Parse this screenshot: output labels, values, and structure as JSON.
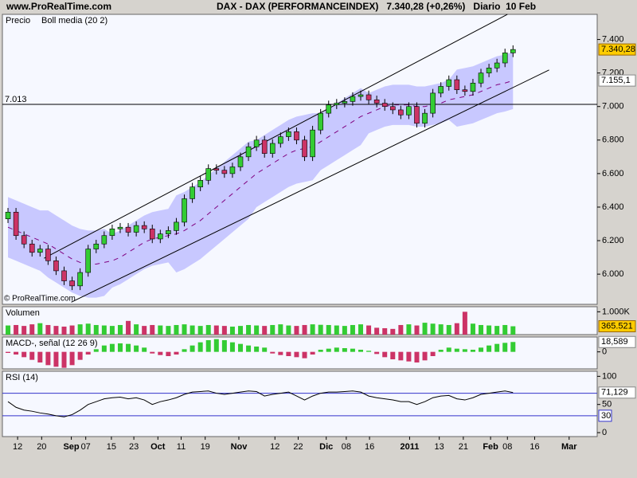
{
  "header": {
    "site": "www.ProRealTime.com",
    "title": "DAX - DAX (PERFORMANCEINDEX)   7.340,28 (+0,26%)   Diario  10 Feb",
    "watermark": "© ProRealTime.com"
  },
  "chart_data": [
    {
      "type": "candlestick",
      "title": "Precio",
      "up_color": "#33cc33",
      "down_color": "#cc3366",
      "ylim": [
        5820,
        7550
      ],
      "yticks": [
        {
          "value": 6000,
          "label": "6.000"
        },
        {
          "value": 6200,
          "label": "6.200"
        },
        {
          "value": 6400,
          "label": "6.400"
        },
        {
          "value": 6600,
          "label": "6.600"
        },
        {
          "value": 6800,
          "label": "6.800"
        },
        {
          "value": 7000,
          "label": "7.000"
        },
        {
          "value": 7200,
          "label": "7.200"
        },
        {
          "value": 7400,
          "label": "7.400"
        }
      ],
      "open": [
        6330,
        6370,
        6230,
        6180,
        6130,
        6150,
        6080,
        6020,
        5960,
        5930,
        6010,
        6150,
        6180,
        6230,
        6270,
        6280,
        6250,
        6290,
        6270,
        6210,
        6240,
        6260,
        6310,
        6450,
        6520,
        6560,
        6630,
        6620,
        6600,
        6640,
        6700,
        6760,
        6800,
        6720,
        6780,
        6820,
        6850,
        6800,
        6700,
        6860,
        6960,
        7010,
        7020,
        7030,
        7060,
        7070,
        7040,
        7020,
        7000,
        6980,
        6950,
        7000,
        6900,
        6960,
        7080,
        7120,
        7160,
        7100,
        7090,
        7140,
        7200,
        7230,
        7260,
        7320
      ],
      "high": [
        6395,
        6395,
        6255,
        6205,
        6175,
        6175,
        6105,
        6045,
        5985,
        6035,
        6175,
        6205,
        6255,
        6295,
        6305,
        6305,
        6315,
        6315,
        6295,
        6265,
        6285,
        6335,
        6475,
        6545,
        6585,
        6655,
        6655,
        6645,
        6665,
        6725,
        6785,
        6825,
        6825,
        6805,
        6845,
        6875,
        6875,
        6825,
        6885,
        6985,
        7035,
        7045,
        7055,
        7085,
        7095,
        7095,
        7065,
        7045,
        7025,
        7005,
        7025,
        7025,
        6985,
        7105,
        7145,
        7185,
        7185,
        7125,
        7165,
        7225,
        7255,
        7285,
        7345,
        7365
      ],
      "low": [
        6305,
        6205,
        6155,
        6105,
        6105,
        6055,
        5995,
        5935,
        5905,
        5905,
        5985,
        6125,
        6155,
        6205,
        6245,
        6225,
        6225,
        6245,
        6185,
        6185,
        6215,
        6235,
        6285,
        6425,
        6495,
        6535,
        6595,
        6575,
        6575,
        6615,
        6675,
        6735,
        6695,
        6695,
        6755,
        6795,
        6775,
        6675,
        6675,
        6835,
        6935,
        6985,
        6995,
        7005,
        7035,
        7015,
        6995,
        6975,
        6955,
        6925,
        6925,
        6875,
        6875,
        6935,
        7055,
        7095,
        7075,
        7065,
        7065,
        7115,
        7175,
        7205,
        7235,
        7295
      ],
      "close": [
        6370,
        6230,
        6180,
        6130,
        6150,
        6080,
        6020,
        5960,
        5930,
        6010,
        6150,
        6180,
        6230,
        6270,
        6280,
        6250,
        6290,
        6270,
        6210,
        6240,
        6260,
        6310,
        6450,
        6520,
        6560,
        6630,
        6620,
        6600,
        6640,
        6700,
        6760,
        6800,
        6720,
        6780,
        6820,
        6850,
        6800,
        6700,
        6860,
        6960,
        7010,
        7020,
        7030,
        7060,
        7070,
        7040,
        7020,
        7000,
        6980,
        6950,
        7000,
        6900,
        6960,
        7080,
        7120,
        7160,
        7100,
        7090,
        7140,
        7200,
        7230,
        7260,
        7320,
        7340.28
      ],
      "value_labels": [
        null,
        null,
        null,
        null,
        null,
        null,
        null,
        null,
        null,
        null,
        null,
        null,
        null,
        null,
        null,
        null,
        null,
        null,
        null,
        null,
        null,
        null,
        null,
        null,
        null,
        null,
        null,
        null,
        null,
        null,
        null,
        null,
        null,
        null,
        null,
        null,
        null,
        null,
        null,
        null,
        null,
        null,
        null,
        null,
        null,
        null,
        null,
        null,
        null,
        null,
        null,
        null,
        null,
        null,
        null,
        null,
        null,
        null,
        null,
        null,
        null,
        null,
        null,
        "7.340,28"
      ],
      "band": {
        "color": "#c8c8ff",
        "upper": [
          6460,
          6440,
          6420,
          6400,
          6380,
          6380,
          6350,
          6320,
          6290,
          6270,
          6260,
          6260,
          6270,
          6240,
          6260,
          6290,
          6320,
          6350,
          6370,
          6380,
          6390,
          6470,
          6490,
          6520,
          6550,
          6590,
          6630,
          6670,
          6710,
          6750,
          6790,
          6800,
          6830,
          6860,
          6890,
          6920,
          6940,
          6950,
          6960,
          6960,
          6990,
          7020,
          7050,
          7080,
          7110,
          7080,
          7100,
          7120,
          7130,
          7130,
          7130,
          7120,
          7120,
          7130,
          7140,
          7160,
          7220,
          7230,
          7240,
          7260,
          7280,
          7300,
          7310,
          7325.1
        ],
        "lower": [
          6100,
          6080,
          6060,
          6040,
          6020,
          5980,
          5950,
          5920,
          5890,
          5870,
          5860,
          5860,
          5870,
          5920,
          5940,
          5970,
          6000,
          6030,
          6050,
          6060,
          6070,
          6010,
          6030,
          6060,
          6090,
          6130,
          6170,
          6210,
          6250,
          6290,
          6330,
          6400,
          6430,
          6460,
          6490,
          6520,
          6540,
          6550,
          6560,
          6620,
          6650,
          6680,
          6710,
          6740,
          6770,
          6840,
          6860,
          6880,
          6890,
          6890,
          6890,
          6880,
          6880,
          6890,
          6900,
          6920,
          6880,
          6890,
          6900,
          6920,
          6940,
          6960,
          6970,
          6985.1
        ]
      },
      "overlays": [
        {
          "name": "Boll media (20 2)",
          "color": "#800080",
          "values": [
            6280,
            6260,
            6240,
            6220,
            6200,
            6180,
            6150,
            6120,
            6090,
            6070,
            6060,
            6060,
            6070,
            6080,
            6100,
            6130,
            6160,
            6190,
            6210,
            6220,
            6230,
            6240,
            6260,
            6290,
            6320,
            6360,
            6400,
            6440,
            6480,
            6520,
            6560,
            6600,
            6630,
            6660,
            6690,
            6720,
            6740,
            6750,
            6760,
            6790,
            6820,
            6850,
            6880,
            6910,
            6940,
            6960,
            6980,
            7000,
            7010,
            7010,
            7010,
            7000,
            7000,
            7010,
            7020,
            7040,
            7050,
            7060,
            7070,
            7090,
            7110,
            7130,
            7140,
            7155.1
          ],
          "value_labels": [
            null,
            null,
            null,
            null,
            null,
            null,
            null,
            null,
            null,
            null,
            null,
            null,
            null,
            null,
            null,
            null,
            null,
            null,
            null,
            null,
            null,
            null,
            null,
            null,
            null,
            null,
            null,
            null,
            null,
            null,
            null,
            null,
            null,
            null,
            null,
            null,
            null,
            null,
            null,
            null,
            null,
            null,
            null,
            null,
            null,
            null,
            null,
            null,
            null,
            null,
            null,
            null,
            null,
            null,
            null,
            null,
            null,
            null,
            null,
            null,
            null,
            null,
            null,
            "7.155,1"
          ]
        }
      ],
      "lines": [
        {
          "x": [
            4.5,
            62.3
          ],
          "y": [
            6095,
            7550
          ]
        },
        {
          "x": [
            7.9,
            67.5
          ],
          "y": [
            5833,
            7218
          ]
        }
      ],
      "hlines": [
        {
          "value": 7013,
          "label": "7.013"
        }
      ]
    },
    {
      "type": "bar",
      "title": "Volumen",
      "title_color": "#33aa33",
      "ylim": [
        0,
        1222
      ],
      "yticks": [
        {
          "value": 1000,
          "label": "1.000K"
        }
      ],
      "values": [
        400,
        420,
        380,
        450,
        500,
        420,
        380,
        350,
        400,
        450,
        480,
        420,
        400,
        380,
        420,
        600,
        450,
        380,
        420,
        400,
        380,
        420,
        450,
        400,
        380,
        420,
        400,
        380,
        350,
        380,
        420,
        400,
        380,
        420,
        450,
        400,
        380,
        420,
        450,
        430,
        420,
        400,
        380,
        420,
        450,
        400,
        300,
        280,
        250,
        420,
        450,
        400,
        520,
        480,
        450,
        420,
        500,
        1000,
        480,
        420,
        400,
        380,
        420,
        365.521
      ]
    },
    {
      "type": "histogram",
      "title": "MACD-, señal (12 26 9)",
      "title_color": "#33aa33",
      "ylim": [
        -32,
        28
      ],
      "yticks": [
        0
      ],
      "values": [
        -2,
        -5,
        -10,
        -15,
        -20,
        -25,
        -28,
        -30,
        -25,
        -15,
        -5,
        5,
        12,
        15,
        16,
        15,
        12,
        8,
        -3,
        -6,
        -8,
        -5,
        5,
        12,
        18,
        22,
        24,
        22,
        18,
        15,
        12,
        10,
        8,
        -3,
        -6,
        -8,
        -10,
        -12,
        -5,
        4,
        6,
        8,
        7,
        6,
        4,
        2,
        -4,
        -10,
        -14,
        -16,
        -18,
        -20,
        -16,
        -8,
        4,
        8,
        6,
        5,
        4,
        8,
        12,
        15,
        17,
        18.589
      ],
      "value_labels": [
        null,
        null,
        null,
        null,
        null,
        null,
        null,
        null,
        null,
        null,
        null,
        null,
        null,
        null,
        null,
        null,
        null,
        null,
        null,
        null,
        null,
        null,
        null,
        null,
        null,
        null,
        null,
        null,
        null,
        null,
        null,
        null,
        null,
        null,
        null,
        null,
        null,
        null,
        null,
        null,
        null,
        null,
        null,
        null,
        null,
        null,
        null,
        null,
        null,
        null,
        null,
        null,
        null,
        null,
        null,
        null,
        null,
        null,
        null,
        null,
        null,
        null,
        null,
        "18,589"
      ]
    },
    {
      "type": "line",
      "title": "RSI (14)",
      "color": "#000000",
      "level_color": "#3333cc",
      "ylim": [
        -7,
        109
      ],
      "yticks": [
        0,
        50,
        100
      ],
      "levels": [
        70,
        30
      ],
      "values": [
        55,
        45,
        40,
        38,
        35,
        33,
        30,
        28,
        32,
        40,
        50,
        55,
        60,
        62,
        63,
        60,
        62,
        58,
        50,
        55,
        58,
        62,
        68,
        72,
        73,
        74,
        70,
        68,
        70,
        72,
        74,
        73,
        65,
        68,
        70,
        72,
        65,
        58,
        65,
        70,
        72,
        72,
        73,
        74,
        72,
        65,
        62,
        60,
        58,
        55,
        55,
        50,
        55,
        62,
        65,
        66,
        60,
        58,
        62,
        68,
        70,
        72,
        74,
        71.129
      ],
      "value_labels": [
        null,
        null,
        null,
        null,
        null,
        null,
        null,
        null,
        null,
        null,
        null,
        null,
        null,
        null,
        null,
        null,
        null,
        null,
        null,
        null,
        null,
        null,
        null,
        null,
        null,
        null,
        null,
        null,
        null,
        null,
        null,
        null,
        null,
        null,
        null,
        null,
        null,
        null,
        null,
        null,
        null,
        null,
        null,
        null,
        null,
        null,
        null,
        null,
        null,
        null,
        null,
        null,
        null,
        null,
        null,
        null,
        null,
        null,
        null,
        null,
        null,
        null,
        null,
        "71,129"
      ],
      "xlim": [
        -0.5,
        73.5
      ],
      "xticks": [
        {
          "value": 1.2,
          "label": "12"
        },
        {
          "value": 4.2,
          "label": "20"
        },
        {
          "value": 7.9,
          "label": "Sep"
        },
        {
          "value": 9.7,
          "label": "07"
        },
        {
          "value": 12.9,
          "label": "15"
        },
        {
          "value": 15.7,
          "label": "23"
        },
        {
          "value": 18.7,
          "label": "Oct"
        },
        {
          "value": 21.6,
          "label": "11"
        },
        {
          "value": 24.6,
          "label": "19"
        },
        {
          "value": 28.8,
          "label": "Nov"
        },
        {
          "value": 33.3,
          "label": "12"
        },
        {
          "value": 36.2,
          "label": "22"
        },
        {
          "value": 39.7,
          "label": "Dic"
        },
        {
          "value": 42.2,
          "label": "08"
        },
        {
          "value": 45.1,
          "label": "16"
        },
        {
          "value": 50.1,
          "label": "2011"
        },
        {
          "value": 53.8,
          "label": "13"
        },
        {
          "value": 56.8,
          "label": "21"
        },
        {
          "value": 60.2,
          "label": "Feb"
        },
        {
          "value": 62.3,
          "label": "08"
        },
        {
          "value": 65.7,
          "label": "16"
        },
        {
          "value": 70.0,
          "label": "Mar"
        }
      ]
    }
  ]
}
